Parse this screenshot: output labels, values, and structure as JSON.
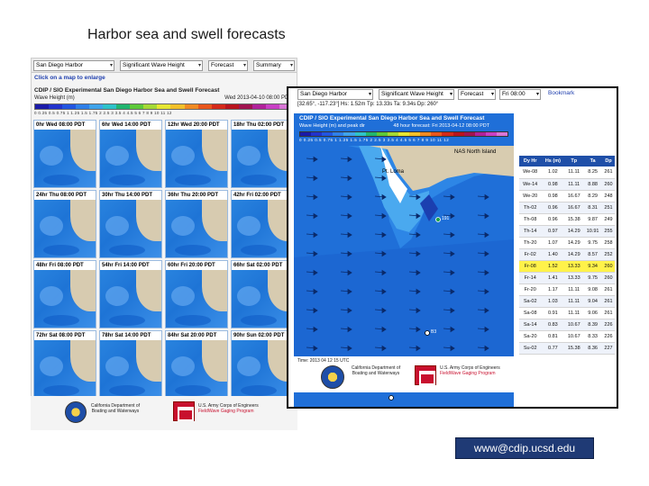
{
  "slide": {
    "title": "Harbor sea and swell forecasts",
    "url": "www@cdip.ucsd.edu"
  },
  "left_panel": {
    "toolbar": {
      "station": "San Diego Harbor",
      "param": "Significant Wave Height",
      "mode": "Forecast",
      "view": "Summary"
    },
    "click_note": "Click on a map to enlarge",
    "title": "CDIP / SIO Experimental San Diego Harbor Sea and Swell Forecast",
    "subtitle_left": "Wave Height (m)",
    "subtitle_right": "Wed 2013-04-10 08:00 PDT",
    "colorbar_ticks": "0   0.25  0.5  0.75  1   1.25  1.5  1.75  2   2.5   3   3.5   4   4.5   5   6   7   8   9   10   11   12",
    "colorbar_colors": [
      "#1a1aa8",
      "#2233cc",
      "#2255e0",
      "#2f7fe8",
      "#3fa3ea",
      "#2ec2c9",
      "#22b56f",
      "#5dc93a",
      "#a4d936",
      "#e6e633",
      "#f2c02a",
      "#f08a22",
      "#e8561c",
      "#d42a1a",
      "#b8141e",
      "#a01450",
      "#b0229a",
      "#c840c4",
      "#d876d6"
    ],
    "thumbnails": [
      "0hr  Wed 08:00 PDT",
      "6hr  Wed 14:00 PDT",
      "12hr  Wed 20:00 PDT",
      "18hr  Thu 02:00 PDT",
      "24hr  Thu 08:00 PDT",
      "30hr  Thu 14:00 PDT",
      "36hr  Thu 20:00 PDT",
      "42hr  Fri 02:00 PDT",
      "48hr  Fri 08:00 PDT",
      "54hr  Fri 14:00 PDT",
      "60hr  Fri 20:00 PDT",
      "66hr  Sat 02:00 PDT",
      "72hr  Sat 08:00 PDT",
      "78hr  Sat 14:00 PDT",
      "84hr  Sat 20:00 PDT",
      "90hr  Sun 02:00 PDT"
    ],
    "logos": {
      "ca_text": "California Department of Boating and Waterways",
      "corps_line1": "U.S. Army Corps of Engineers",
      "corps_line2": "FieldWave Gaging Program"
    }
  },
  "right_panel": {
    "toolbar": {
      "station": "San Diego Harbor",
      "param": "Significant Wave Height",
      "mode": "Forecast",
      "time": "Fri 08:00",
      "bookmark": "Bookmark"
    },
    "coord_readout": "[32.65°, -117.23°]  Hs: 1.52m  Tp: 13.33s  Ta: 9.34s  Dp: 260°",
    "map": {
      "title": "CDIP / SIO Experimental San Diego Harbor Sea and Swell Forecast",
      "subtitle_left": "Wave Height (m) and peak dir",
      "subtitle_right": "48 hour forecast: Fri 2013-04-12 08:00 PDT",
      "colorbar_ticks": "0  0.25 0.5 0.75 1  1.25 1.5 1.75 2  2.5  3  3.5  4  4.5  5  6  7  8  9  10  11  12",
      "place_pt_loma": "Pt. Loma",
      "place_nas": "NAS North Island",
      "buoys": [
        "191",
        "B3",
        "B4"
      ],
      "time_label": "Time: 2013 04 12 15 UTC"
    },
    "table": {
      "headers": [
        "Dy Hr",
        "Hs (m)",
        "Tp",
        "Ta",
        "Dp"
      ],
      "rows": [
        [
          "We-08",
          "1.02",
          "11.11",
          "8.25",
          "261"
        ],
        [
          "We-14",
          "0.98",
          "11.11",
          "8.88",
          "260"
        ],
        [
          "We-20",
          "0.98",
          "16.67",
          "8.29",
          "248"
        ],
        [
          "Th-02",
          "0.96",
          "16.67",
          "8.31",
          "251"
        ],
        [
          "Th-08",
          "0.96",
          "15.38",
          "9.87",
          "249"
        ],
        [
          "Th-14",
          "0.97",
          "14.29",
          "10.91",
          "255"
        ],
        [
          "Th-20",
          "1.07",
          "14.29",
          "9.75",
          "258"
        ],
        [
          "Fr-02",
          "1.40",
          "14.29",
          "8.57",
          "252"
        ],
        [
          "Fr-08",
          "1.52",
          "13.33",
          "9.34",
          "260"
        ],
        [
          "Fr-14",
          "1.41",
          "13.33",
          "9.75",
          "260"
        ],
        [
          "Fr-20",
          "1.17",
          "11.11",
          "9.08",
          "261"
        ],
        [
          "Sa-02",
          "1.03",
          "11.11",
          "9.04",
          "261"
        ],
        [
          "Sa-08",
          "0.91",
          "11.11",
          "9.06",
          "261"
        ],
        [
          "Sa-14",
          "0.83",
          "10.67",
          "8.39",
          "226"
        ],
        [
          "Sa-20",
          "0.81",
          "10.67",
          "8.33",
          "226"
        ],
        [
          "Su-02",
          "0.77",
          "15.38",
          "8.36",
          "227"
        ]
      ],
      "highlight_row": 8
    },
    "logos": {
      "ca_text": "California Department of Boating and Waterways",
      "corps_line1": "U.S. Army Corps of Engineers",
      "corps_line2": "FieldWave Gaging Program"
    }
  }
}
